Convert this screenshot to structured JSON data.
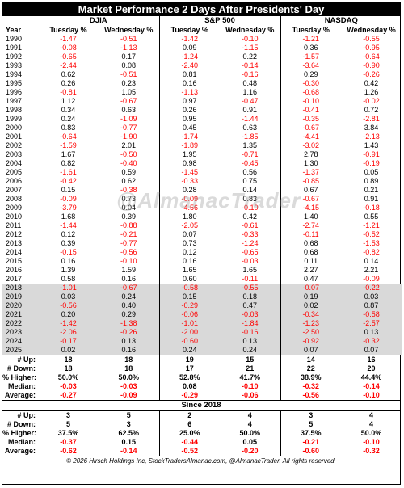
{
  "title": "Market Performance 2 Days After Presidents' Day",
  "groups": [
    "DJIA",
    "S&P 500",
    "NASDAQ"
  ],
  "columns": [
    "Year",
    "Tuesday %",
    "Wednesday %",
    "Tuesday %",
    "Wednesday %",
    "Tuesday %",
    "Wednesday %"
  ],
  "rows": [
    [
      "1990",
      "-1.47",
      "-0.51",
      "-1.42",
      "-0.10",
      "-1.21",
      "-0.55"
    ],
    [
      "1991",
      "-0.08",
      "-1.13",
      "0.09",
      "-1.15",
      "0.36",
      "-0.95"
    ],
    [
      "1992",
      "-0.65",
      "0.17",
      "-1.24",
      "0.22",
      "-1.57",
      "-0.64"
    ],
    [
      "1993",
      "-2.44",
      "0.08",
      "-2.40",
      "-0.14",
      "-3.64",
      "-0.90"
    ],
    [
      "1994",
      "0.62",
      "-0.51",
      "0.81",
      "-0.16",
      "0.29",
      "-0.26"
    ],
    [
      "1995",
      "0.26",
      "0.23",
      "0.16",
      "0.48",
      "-0.30",
      "0.42"
    ],
    [
      "1996",
      "-0.81",
      "1.05",
      "-1.13",
      "1.16",
      "-0.68",
      "1.26"
    ],
    [
      "1997",
      "1.12",
      "-0.67",
      "0.97",
      "-0.47",
      "-0.10",
      "-0.02"
    ],
    [
      "1998",
      "0.34",
      "0.63",
      "0.26",
      "0.91",
      "-0.41",
      "0.72"
    ],
    [
      "1999",
      "0.24",
      "-1.09",
      "0.95",
      "-1.44",
      "-0.35",
      "-2.81"
    ],
    [
      "2000",
      "0.83",
      "-0.77",
      "0.45",
      "0.63",
      "-0.67",
      "3.84"
    ],
    [
      "2001",
      "-0.64",
      "-1.90",
      "-1.74",
      "-1.85",
      "-4.41",
      "-2.13"
    ],
    [
      "2002",
      "-1.59",
      "2.01",
      "-1.89",
      "1.35",
      "-3.02",
      "1.43"
    ],
    [
      "2003",
      "1.67",
      "-0.50",
      "1.95",
      "-0.71",
      "2.78",
      "-0.91"
    ],
    [
      "2004",
      "0.82",
      "-0.40",
      "0.98",
      "-0.45",
      "1.30",
      "-0.19"
    ],
    [
      "2005",
      "-1.61",
      "0.59",
      "-1.45",
      "0.56",
      "-1.37",
      "0.05"
    ],
    [
      "2006",
      "-0.42",
      "0.62",
      "-0.33",
      "0.75",
      "-0.85",
      "0.89"
    ],
    [
      "2007",
      "0.15",
      "-0.38",
      "0.28",
      "0.14",
      "0.67",
      "0.21"
    ],
    [
      "2008",
      "-0.09",
      "0.73",
      "-0.09",
      "0.83",
      "-0.67",
      "0.91"
    ],
    [
      "2009",
      "-3.79",
      "0.04",
      "-4.56",
      "-0.10",
      "-4.15",
      "-0.18"
    ],
    [
      "2010",
      "1.68",
      "0.39",
      "1.80",
      "0.42",
      "1.40",
      "0.55"
    ],
    [
      "2011",
      "-1.44",
      "-0.88",
      "-2.05",
      "-0.61",
      "-2.74",
      "-1.21"
    ],
    [
      "2012",
      "0.12",
      "-0.21",
      "0.07",
      "-0.33",
      "-0.11",
      "-0.52"
    ],
    [
      "2013",
      "0.39",
      "-0.77",
      "0.73",
      "-1.24",
      "0.68",
      "-1.53"
    ],
    [
      "2014",
      "-0.15",
      "-0.56",
      "0.12",
      "-0.65",
      "0.68",
      "-0.82"
    ],
    [
      "2015",
      "0.16",
      "-0.10",
      "0.16",
      "-0.03",
      "0.11",
      "0.14"
    ],
    [
      "2016",
      "1.39",
      "1.59",
      "1.65",
      "1.65",
      "2.27",
      "2.21"
    ],
    [
      "2017",
      "0.58",
      "0.16",
      "0.60",
      "-0.11",
      "0.47",
      "-0.09"
    ],
    [
      "2018",
      "-1.01",
      "-0.67",
      "-0.58",
      "-0.55",
      "-0.07",
      "-0.22"
    ],
    [
      "2019",
      "0.03",
      "0.24",
      "0.15",
      "0.18",
      "0.19",
      "0.03"
    ],
    [
      "2020",
      "-0.56",
      "0.40",
      "-0.29",
      "0.47",
      "0.02",
      "0.87"
    ],
    [
      "2021",
      "0.20",
      "0.29",
      "-0.06",
      "-0.03",
      "-0.34",
      "-0.58"
    ],
    [
      "2022",
      "-1.42",
      "-1.38",
      "-1.01",
      "-1.84",
      "-1.23",
      "-2.57"
    ],
    [
      "2023",
      "-2.06",
      "-0.26",
      "-2.00",
      "-0.16",
      "-2.50",
      "0.13"
    ],
    [
      "2024",
      "-0.17",
      "0.13",
      "-0.60",
      "0.13",
      "-0.92",
      "-0.32"
    ],
    [
      "2025",
      "0.02",
      "0.16",
      "0.24",
      "0.24",
      "0.07",
      "0.07"
    ]
  ],
  "stats_all": [
    [
      "# Up:",
      "18",
      "18",
      "19",
      "15",
      "14",
      "16"
    ],
    [
      "# Down:",
      "18",
      "18",
      "17",
      "21",
      "22",
      "20"
    ],
    [
      "% Higher:",
      "50.0%",
      "50.0%",
      "52.8%",
      "41.7%",
      "38.9%",
      "44.4%"
    ],
    [
      "Median:",
      "-0.03",
      "-0.03",
      "0.08",
      "-0.10",
      "-0.32",
      "-0.14"
    ],
    [
      "Average:",
      "-0.27",
      "-0.09",
      "-0.29",
      "-0.06",
      "-0.56",
      "-0.10"
    ]
  ],
  "since_title": "Since 2018",
  "stats_since": [
    [
      "# Up:",
      "3",
      "5",
      "2",
      "4",
      "3",
      "4"
    ],
    [
      "# Down:",
      "5",
      "3",
      "6",
      "4",
      "5",
      "4"
    ],
    [
      "% Higher:",
      "37.5%",
      "62.5%",
      "25.0%",
      "50.0%",
      "37.5%",
      "50.0%"
    ],
    [
      "Median:",
      "-0.37",
      "0.15",
      "-0.44",
      "0.05",
      "-0.21",
      "-0.10"
    ],
    [
      "Average:",
      "-0.62",
      "-0.14",
      "-0.52",
      "-0.20",
      "-0.60",
      "-0.32"
    ]
  ],
  "footer": "© 2026 Hirsch Holdings Inc, StockTradersAlmanac.com, @AlmanacTrader. All rights reserved.",
  "watermark": "@AlmanacTrader",
  "colors": {
    "negative": "#ff0000",
    "shade": "#d9d9d9",
    "header_bg": "#000000"
  }
}
